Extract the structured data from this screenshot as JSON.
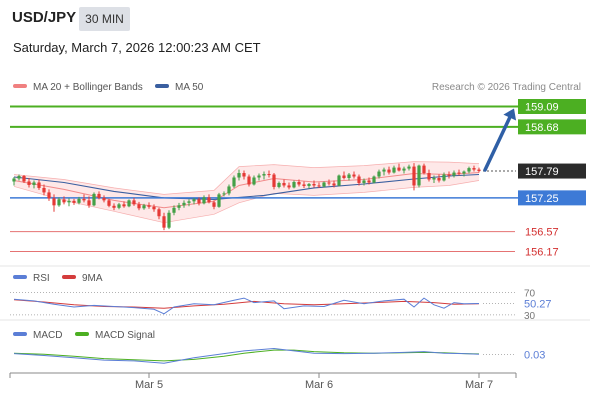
{
  "header": {
    "symbol": "USD/JPY",
    "timeframe": "30 MIN",
    "datetime": "Saturday, March 7, 2026 12:00:23 AM CET"
  },
  "colors": {
    "up": "#43a047",
    "down": "#e53935",
    "bollinger_line": "#f08080",
    "bollinger_fill": "#fde0e0",
    "ma50": "#3a5fa0",
    "green_level": "#4caf22",
    "blue_level": "#3d7ad6",
    "red_level": "#e57373",
    "last_price_bg": "#2b2b2b",
    "rsi": "#5b7ed6",
    "rsi_ma": "#d43c3c",
    "macd": "#5b7ed6",
    "macd_signal": "#4caf22",
    "arrow": "#2f5fa6"
  },
  "chart_data": {
    "type": "candlestick",
    "legend": [
      {
        "label": "MA 20 + Bollinger Bands",
        "color": "#f08080"
      },
      {
        "label": "MA 50",
        "color": "#3a5fa0"
      }
    ],
    "copyright": "Research © 2026 Trading Central",
    "ylim": [
      156.0,
      159.3
    ],
    "x_ticks": [
      "Mar 5",
      "Mar 6",
      "Mar 7"
    ],
    "levels": [
      {
        "value": 159.09,
        "label": "159.09",
        "kind": "resistance",
        "color": "#4caf22"
      },
      {
        "value": 158.68,
        "label": "158.68",
        "kind": "resistance",
        "color": "#4caf22"
      },
      {
        "value": 157.25,
        "label": "157.25",
        "kind": "pivot",
        "color": "#3d7ad6"
      },
      {
        "value": 156.57,
        "label": "156.57",
        "kind": "support",
        "color": "#e57373"
      },
      {
        "value": 156.17,
        "label": "156.17",
        "kind": "support",
        "color": "#e57373"
      }
    ],
    "last_price": {
      "value": 157.79,
      "label": "157.79"
    },
    "target_arrow": {
      "from": 157.79,
      "to": 159.09
    },
    "candles": [
      [
        157.58,
        157.67,
        157.5,
        157.64
      ],
      [
        157.64,
        157.72,
        157.6,
        157.69
      ],
      [
        157.69,
        157.71,
        157.55,
        157.58
      ],
      [
        157.58,
        157.65,
        157.46,
        157.51
      ],
      [
        157.51,
        157.6,
        157.44,
        157.56
      ],
      [
        157.56,
        157.62,
        157.41,
        157.45
      ],
      [
        157.45,
        157.52,
        157.3,
        157.36
      ],
      [
        157.36,
        157.42,
        157.19,
        157.24
      ],
      [
        157.24,
        157.32,
        156.97,
        157.1
      ],
      [
        157.1,
        157.26,
        157.07,
        157.22
      ],
      [
        157.22,
        157.28,
        157.12,
        157.16
      ],
      [
        157.16,
        157.24,
        157.08,
        157.19
      ],
      [
        157.19,
        157.23,
        157.11,
        157.15
      ],
      [
        157.15,
        157.27,
        157.12,
        157.23
      ],
      [
        157.23,
        157.32,
        157.16,
        157.2
      ],
      [
        157.2,
        157.28,
        157.05,
        157.1
      ],
      [
        157.1,
        157.36,
        157.08,
        157.33
      ],
      [
        157.33,
        157.38,
        157.22,
        157.25
      ],
      [
        157.25,
        157.3,
        157.16,
        157.2
      ],
      [
        157.2,
        157.23,
        157.06,
        157.09
      ],
      [
        157.09,
        157.14,
        157.0,
        157.05
      ],
      [
        157.05,
        157.15,
        157.02,
        157.12
      ],
      [
        157.12,
        157.18,
        157.05,
        157.08
      ],
      [
        157.08,
        157.22,
        157.06,
        157.2
      ],
      [
        157.2,
        157.25,
        157.09,
        157.12
      ],
      [
        157.12,
        157.17,
        157.0,
        157.04
      ],
      [
        157.04,
        157.13,
        157.01,
        157.1
      ],
      [
        157.1,
        157.16,
        157.03,
        157.07
      ],
      [
        157.07,
        157.12,
        156.97,
        157.02
      ],
      [
        157.02,
        157.05,
        156.82,
        156.88
      ],
      [
        156.88,
        156.95,
        156.6,
        156.65
      ],
      [
        156.65,
        157.0,
        156.62,
        156.95
      ],
      [
        156.95,
        157.1,
        156.9,
        157.05
      ],
      [
        157.05,
        157.15,
        157.0,
        157.1
      ],
      [
        157.1,
        157.2,
        157.05,
        157.15
      ],
      [
        157.15,
        157.22,
        157.08,
        157.18
      ],
      [
        157.18,
        157.25,
        157.12,
        157.22
      ],
      [
        157.22,
        157.26,
        157.1,
        157.14
      ],
      [
        157.14,
        157.3,
        157.12,
        157.26
      ],
      [
        157.26,
        157.32,
        157.14,
        157.16
      ],
      [
        157.16,
        157.2,
        157.02,
        157.07
      ],
      [
        157.07,
        157.35,
        157.05,
        157.32
      ],
      [
        157.32,
        157.38,
        157.28,
        157.34
      ],
      [
        157.34,
        157.52,
        157.3,
        157.48
      ],
      [
        157.48,
        157.7,
        157.45,
        157.66
      ],
      [
        157.66,
        157.82,
        157.6,
        157.75
      ],
      [
        157.75,
        157.8,
        157.62,
        157.68
      ],
      [
        157.68,
        157.72,
        157.48,
        157.52
      ],
      [
        157.52,
        157.7,
        157.5,
        157.66
      ],
      [
        157.66,
        157.74,
        157.6,
        157.7
      ],
      [
        157.7,
        157.78,
        157.62,
        157.73
      ],
      [
        157.73,
        157.8,
        157.66,
        157.72
      ],
      [
        157.72,
        157.75,
        157.42,
        157.47
      ],
      [
        157.47,
        157.58,
        157.44,
        157.55
      ],
      [
        157.55,
        157.62,
        157.46,
        157.5
      ],
      [
        157.5,
        157.56,
        157.42,
        157.46
      ],
      [
        157.46,
        157.6,
        157.44,
        157.57
      ],
      [
        157.57,
        157.62,
        157.48,
        157.52
      ],
      [
        157.52,
        157.58,
        157.45,
        157.49
      ],
      [
        157.49,
        157.55,
        157.44,
        157.53
      ],
      [
        157.53,
        157.6,
        157.46,
        157.5
      ],
      [
        157.5,
        157.56,
        157.45,
        157.48
      ],
      [
        157.48,
        157.58,
        157.46,
        157.56
      ],
      [
        157.56,
        157.62,
        157.5,
        157.54
      ],
      [
        157.54,
        157.6,
        157.46,
        157.5
      ],
      [
        157.5,
        157.72,
        157.48,
        157.7
      ],
      [
        157.7,
        157.78,
        157.62,
        157.65
      ],
      [
        157.65,
        157.75,
        157.6,
        157.72
      ],
      [
        157.72,
        157.78,
        157.64,
        157.68
      ],
      [
        157.68,
        157.72,
        157.5,
        157.55
      ],
      [
        157.55,
        157.64,
        157.5,
        157.6
      ],
      [
        157.6,
        157.66,
        157.52,
        157.56
      ],
      [
        157.56,
        157.7,
        157.54,
        157.68
      ],
      [
        157.68,
        157.82,
        157.64,
        157.78
      ],
      [
        157.78,
        157.86,
        157.7,
        157.82
      ],
      [
        157.82,
        157.88,
        157.72,
        157.76
      ],
      [
        157.76,
        157.9,
        157.74,
        157.86
      ],
      [
        157.86,
        157.94,
        157.78,
        157.8
      ],
      [
        157.8,
        157.88,
        157.74,
        157.84
      ],
      [
        157.84,
        157.92,
        157.8,
        157.88
      ],
      [
        157.88,
        157.95,
        157.4,
        157.5
      ],
      [
        157.5,
        157.92,
        157.46,
        157.9
      ],
      [
        157.9,
        157.94,
        157.72,
        157.75
      ],
      [
        157.75,
        157.82,
        157.58,
        157.62
      ],
      [
        157.62,
        157.7,
        157.55,
        157.65
      ],
      [
        157.65,
        157.72,
        157.56,
        157.6
      ],
      [
        157.6,
        157.76,
        157.58,
        157.72
      ],
      [
        157.72,
        157.78,
        157.64,
        157.7
      ],
      [
        157.7,
        157.8,
        157.66,
        157.76
      ],
      [
        157.76,
        157.82,
        157.7,
        157.74
      ],
      [
        157.74,
        157.8,
        157.68,
        157.78
      ],
      [
        157.78,
        157.88,
        157.74,
        157.85
      ],
      [
        157.85,
        157.9,
        157.78,
        157.82
      ],
      [
        157.82,
        157.86,
        157.76,
        157.79
      ]
    ],
    "bollinger": {
      "upper": [
        [
          0,
          157.72
        ],
        [
          10,
          157.62
        ],
        [
          20,
          157.45
        ],
        [
          30,
          157.32
        ],
        [
          40,
          157.4
        ],
        [
          45,
          157.88
        ],
        [
          52,
          157.92
        ],
        [
          60,
          157.86
        ],
        [
          70,
          157.9
        ],
        [
          80,
          157.98
        ],
        [
          87,
          157.97
        ],
        [
          93,
          157.94
        ]
      ],
      "middle": [
        [
          0,
          157.6
        ],
        [
          10,
          157.42
        ],
        [
          20,
          157.2
        ],
        [
          30,
          157.05
        ],
        [
          40,
          157.18
        ],
        [
          45,
          157.5
        ],
        [
          52,
          157.64
        ],
        [
          60,
          157.57
        ],
        [
          70,
          157.62
        ],
        [
          80,
          157.74
        ],
        [
          87,
          157.72
        ],
        [
          93,
          157.76
        ]
      ],
      "lower": [
        [
          0,
          157.48
        ],
        [
          10,
          157.2
        ],
        [
          20,
          156.98
        ],
        [
          30,
          156.75
        ],
        [
          40,
          156.92
        ],
        [
          45,
          157.15
        ],
        [
          52,
          157.34
        ],
        [
          60,
          157.3
        ],
        [
          70,
          157.36
        ],
        [
          80,
          157.46
        ],
        [
          87,
          157.5
        ],
        [
          93,
          157.6
        ]
      ]
    },
    "ma50": [
      [
        0,
        157.67
      ],
      [
        10,
        157.56
      ],
      [
        20,
        157.38
      ],
      [
        30,
        157.25
      ],
      [
        40,
        157.22
      ],
      [
        50,
        157.3
      ],
      [
        60,
        157.45
      ],
      [
        70,
        157.53
      ],
      [
        80,
        157.63
      ],
      [
        87,
        157.69
      ],
      [
        93,
        157.72
      ]
    ],
    "rsi": {
      "legend": [
        {
          "label": "RSI",
          "color": "#5b7ed6"
        },
        {
          "label": "9MA",
          "color": "#d43c3c"
        }
      ],
      "ylim": [
        28,
        78
      ],
      "levels": [
        {
          "value": 70,
          "label": "70"
        },
        {
          "value": 30,
          "label": "30"
        }
      ],
      "last_label": "50.27",
      "rsi_values": [
        [
          0,
          58
        ],
        [
          4,
          55
        ],
        [
          8,
          49
        ],
        [
          12,
          44
        ],
        [
          16,
          47
        ],
        [
          20,
          45
        ],
        [
          24,
          43
        ],
        [
          28,
          40
        ],
        [
          30,
          32
        ],
        [
          32,
          44
        ],
        [
          36,
          50
        ],
        [
          40,
          48
        ],
        [
          44,
          56
        ],
        [
          46,
          60
        ],
        [
          48,
          52
        ],
        [
          52,
          55
        ],
        [
          54,
          41
        ],
        [
          58,
          46
        ],
        [
          62,
          45
        ],
        [
          66,
          56
        ],
        [
          70,
          50
        ],
        [
          74,
          55
        ],
        [
          78,
          58
        ],
        [
          80,
          44
        ],
        [
          82,
          60
        ],
        [
          84,
          48
        ],
        [
          86,
          42
        ],
        [
          88,
          52
        ],
        [
          90,
          50
        ],
        [
          93,
          50.27
        ]
      ],
      "ma_values": [
        [
          0,
          57
        ],
        [
          6,
          53
        ],
        [
          12,
          48
        ],
        [
          18,
          45
        ],
        [
          24,
          44
        ],
        [
          30,
          42
        ],
        [
          36,
          46
        ],
        [
          42,
          49
        ],
        [
          48,
          54
        ],
        [
          54,
          50
        ],
        [
          60,
          48
        ],
        [
          66,
          50
        ],
        [
          72,
          52
        ],
        [
          78,
          54
        ],
        [
          84,
          52
        ],
        [
          88,
          49
        ],
        [
          93,
          50
        ]
      ]
    },
    "macd": {
      "legend": [
        {
          "label": "MACD",
          "color": "#5b7ed6"
        },
        {
          "label": "MACD Signal",
          "color": "#4caf22"
        }
      ],
      "ylim": [
        -0.4,
        0.4
      ],
      "last_label": "0.03",
      "macd_values": [
        [
          0,
          0.05
        ],
        [
          6,
          0.0
        ],
        [
          12,
          -0.06
        ],
        [
          18,
          -0.12
        ],
        [
          24,
          -0.14
        ],
        [
          30,
          -0.2
        ],
        [
          36,
          -0.06
        ],
        [
          42,
          0.05
        ],
        [
          46,
          0.12
        ],
        [
          52,
          0.18
        ],
        [
          56,
          0.12
        ],
        [
          60,
          0.06
        ],
        [
          66,
          0.05
        ],
        [
          72,
          0.06
        ],
        [
          78,
          0.08
        ],
        [
          82,
          0.1
        ],
        [
          86,
          0.06
        ],
        [
          90,
          0.05
        ],
        [
          93,
          0.03
        ]
      ],
      "signal_values": [
        [
          0,
          0.06
        ],
        [
          6,
          0.03
        ],
        [
          12,
          -0.02
        ],
        [
          18,
          -0.08
        ],
        [
          24,
          -0.11
        ],
        [
          30,
          -0.14
        ],
        [
          36,
          -0.1
        ],
        [
          42,
          -0.02
        ],
        [
          46,
          0.06
        ],
        [
          52,
          0.14
        ],
        [
          56,
          0.14
        ],
        [
          60,
          0.1
        ],
        [
          66,
          0.07
        ],
        [
          72,
          0.06
        ],
        [
          78,
          0.07
        ],
        [
          82,
          0.08
        ],
        [
          86,
          0.07
        ],
        [
          90,
          0.05
        ],
        [
          93,
          0.04
        ]
      ]
    }
  }
}
